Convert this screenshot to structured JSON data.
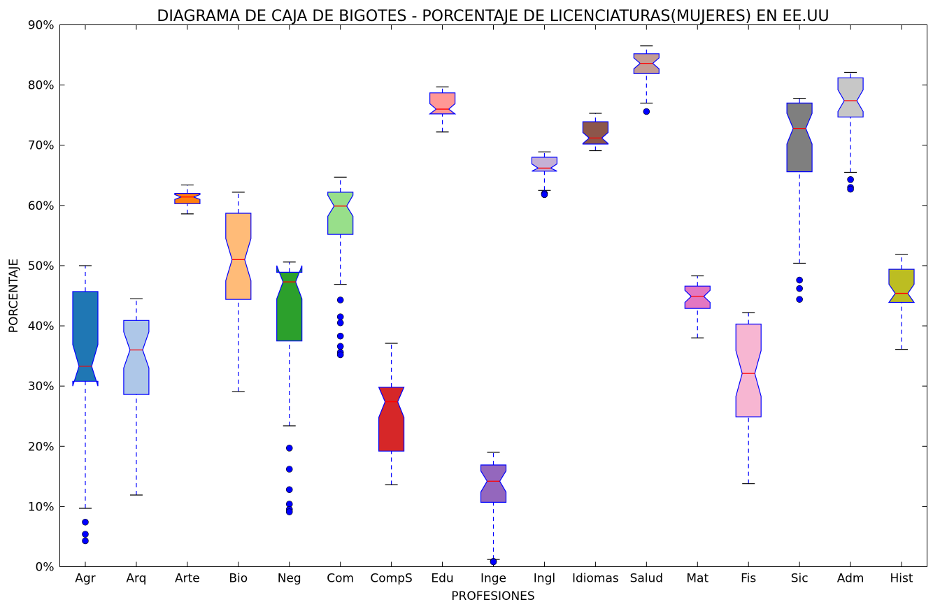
{
  "chart_data": {
    "type": "box",
    "title": "DIAGRAMA DE CAJA DE BIGOTES - PORCENTAJE DE LICENCIATURAS(MUJERES) EN EE.UU",
    "xlabel": "PROFESIONES",
    "ylabel": "PORCENTAJE",
    "ylim": [
      0,
      90
    ],
    "yticks": [
      0,
      10,
      20,
      30,
      40,
      50,
      60,
      70,
      80,
      90
    ],
    "ytick_labels": [
      "0%",
      "10%",
      "20%",
      "30%",
      "40%",
      "50%",
      "60%",
      "70%",
      "80%",
      "90%"
    ],
    "notched": true,
    "median_color": "#ff0000",
    "outline_color": "#0000ff",
    "categories": [
      "Agr",
      "Arq",
      "Arte",
      "Bio",
      "Neg",
      "Com",
      "CompS",
      "Edu",
      "Inge",
      "Ingl",
      "Idiomas",
      "Salud",
      "Mat",
      "Fis",
      "Sic",
      "Adm",
      "Hist"
    ],
    "boxes": [
      {
        "label": "Agr",
        "color": "#1f77b4",
        "whislo": 9.7,
        "q1": 30.8,
        "med": 33.3,
        "q3": 45.7,
        "whishi": 50.0,
        "notch_lo": 30.0,
        "notch_hi": 36.9,
        "fliers": [
          7.4,
          5.4,
          4.3
        ]
      },
      {
        "label": "Arq",
        "color": "#aec7e8",
        "whislo": 11.9,
        "q1": 28.6,
        "med": 36.0,
        "q3": 40.9,
        "whishi": 44.5,
        "notch_lo": 33.0,
        "notch_hi": 39.0,
        "fliers": []
      },
      {
        "label": "Arte",
        "color": "#ff7f0e",
        "whislo": 58.6,
        "q1": 60.3,
        "med": 61.4,
        "q3": 62.0,
        "whishi": 63.4,
        "notch_lo": 61.0,
        "notch_hi": 61.8,
        "fliers": []
      },
      {
        "label": "Bio",
        "color": "#ffbb78",
        "whislo": 29.1,
        "q1": 44.4,
        "med": 51.0,
        "q3": 58.7,
        "whishi": 62.2,
        "notch_lo": 47.5,
        "notch_hi": 54.5,
        "fliers": []
      },
      {
        "label": "Neg",
        "color": "#2ca02c",
        "whislo": 23.4,
        "q1": 37.5,
        "med": 47.3,
        "q3": 48.9,
        "whishi": 50.6,
        "notch_lo": 44.5,
        "notch_hi": 50.0,
        "fliers": [
          19.7,
          16.2,
          12.8,
          10.4,
          9.5,
          9.1
        ]
      },
      {
        "label": "Com",
        "color": "#98df8a",
        "whislo": 46.9,
        "q1": 55.2,
        "med": 59.9,
        "q3": 62.2,
        "whishi": 64.7,
        "notch_lo": 58.2,
        "notch_hi": 61.7,
        "fliers": [
          44.3,
          41.5,
          40.5,
          38.3,
          36.6,
          35.6,
          35.2
        ]
      },
      {
        "label": "CompS",
        "color": "#d62728",
        "whislo": 13.6,
        "q1": 19.2,
        "med": 27.4,
        "q3": 29.8,
        "whishi": 37.1,
        "notch_lo": 24.8,
        "notch_hi": 29.8,
        "fliers": []
      },
      {
        "label": "Edu",
        "color": "#ff9896",
        "whislo": 72.2,
        "q1": 75.2,
        "med": 76.0,
        "q3": 78.7,
        "whishi": 79.7,
        "notch_lo": 75.2,
        "notch_hi": 76.9,
        "fliers": []
      },
      {
        "label": "Inge",
        "color": "#9467bd",
        "whislo": 1.2,
        "q1": 10.7,
        "med": 14.2,
        "q3": 16.9,
        "whishi": 19.0,
        "notch_lo": 12.4,
        "notch_hi": 15.9,
        "fliers": [
          0.9,
          0.8
        ]
      },
      {
        "label": "Ingl",
        "color": "#c5b0d5",
        "whislo": 62.5,
        "q1": 65.7,
        "med": 66.2,
        "q3": 68.0,
        "whishi": 68.9,
        "notch_lo": 65.7,
        "notch_hi": 66.9,
        "fliers": [
          62.0,
          61.8
        ]
      },
      {
        "label": "Idiomas",
        "color": "#8c564b",
        "whislo": 69.1,
        "q1": 70.2,
        "med": 71.2,
        "q3": 73.9,
        "whishi": 75.3,
        "notch_lo": 70.3,
        "notch_hi": 72.1,
        "fliers": []
      },
      {
        "label": "Salud",
        "color": "#c49c94",
        "whislo": 77.0,
        "q1": 81.9,
        "med": 83.6,
        "q3": 85.2,
        "whishi": 86.5,
        "notch_lo": 82.7,
        "notch_hi": 84.5,
        "fliers": [
          75.6
        ]
      },
      {
        "label": "Mat",
        "color": "#e377c2",
        "whislo": 38.0,
        "q1": 42.9,
        "med": 44.9,
        "q3": 46.6,
        "whishi": 48.3,
        "notch_lo": 43.9,
        "notch_hi": 45.9,
        "fliers": []
      },
      {
        "label": "Fis",
        "color": "#f7b6d2",
        "whislo": 13.8,
        "q1": 24.9,
        "med": 32.1,
        "q3": 40.3,
        "whishi": 42.2,
        "notch_lo": 28.3,
        "notch_hi": 35.9,
        "fliers": []
      },
      {
        "label": "Sic",
        "color": "#7f7f7f",
        "whislo": 50.4,
        "q1": 65.6,
        "med": 72.8,
        "q3": 77.0,
        "whishi": 77.8,
        "notch_lo": 70.2,
        "notch_hi": 75.3,
        "fliers": [
          47.6,
          46.2,
          44.4
        ]
      },
      {
        "label": "Adm",
        "color": "#c7c7c7",
        "whislo": 65.5,
        "q1": 74.7,
        "med": 77.4,
        "q3": 81.2,
        "whishi": 82.1,
        "notch_lo": 75.6,
        "notch_hi": 79.2,
        "fliers": [
          64.3,
          63.0,
          62.7
        ]
      },
      {
        "label": "Hist",
        "color": "#bcbd22",
        "whislo": 36.1,
        "q1": 43.9,
        "med": 45.4,
        "q3": 49.4,
        "whishi": 51.9,
        "notch_lo": 43.9,
        "notch_hi": 46.9,
        "fliers": []
      }
    ]
  }
}
